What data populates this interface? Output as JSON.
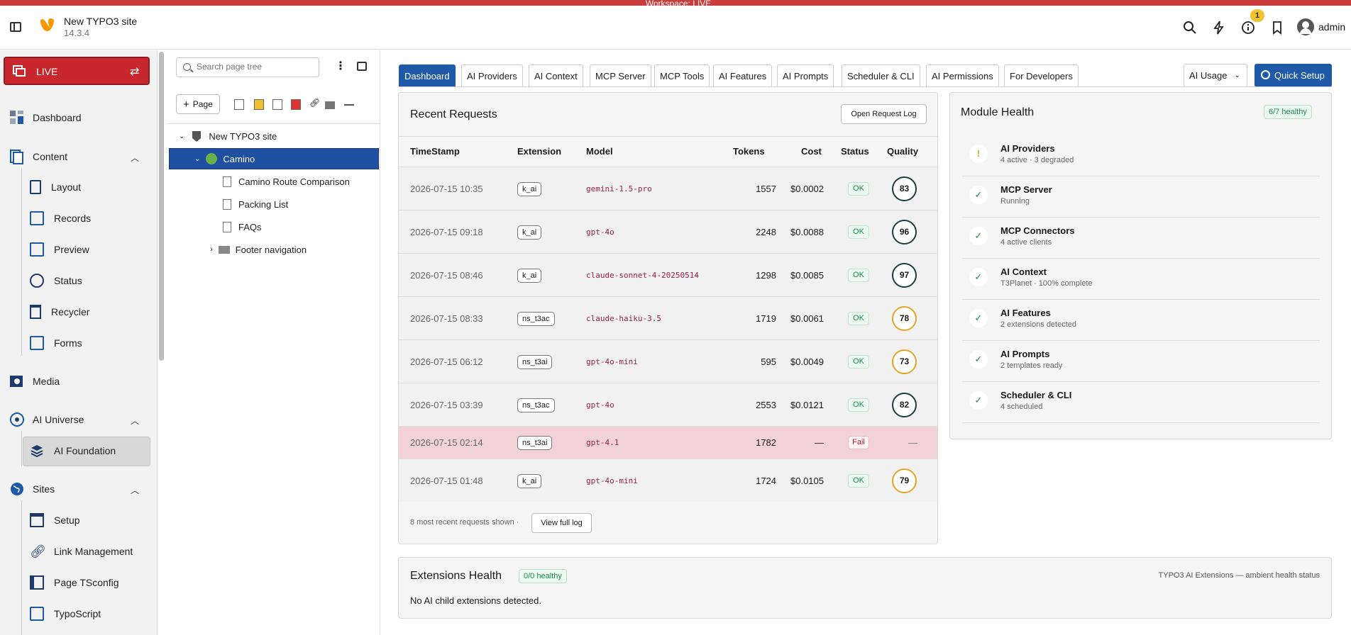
{
  "workspace_badge": "Workspace: LIVE",
  "header": {
    "site_name": "New TYPO3 site",
    "version": "14.3.4",
    "notification_count": "1",
    "username": "admin"
  },
  "sidebar": {
    "live_label": "LIVE",
    "items": {
      "dashboard": "Dashboard",
      "content": "Content",
      "layout": "Layout",
      "records": "Records",
      "preview": "Preview",
      "status": "Status",
      "recycler": "Recycler",
      "forms": "Forms",
      "media": "Media",
      "ai_universe": "AI Universe",
      "ai_foundation": "AI Foundation",
      "sites": "Sites",
      "setup": "Setup",
      "link_management": "Link Management",
      "page_tsconfig": "Page TSconfig",
      "typoscript": "TypoScript"
    }
  },
  "page_tree": {
    "search_placeholder": "Search page tree",
    "page_button": "Page",
    "root": "New TYPO3 site",
    "selected": "Camino",
    "children": [
      "Camino Route Comparison",
      "Packing List",
      "FAQs"
    ],
    "footer": "Footer navigation"
  },
  "tabs": [
    "Dashboard",
    "AI Providers",
    "AI Context",
    "MCP Server",
    "MCP Tools",
    "AI Features",
    "AI Prompts",
    "Scheduler & CLI",
    "AI Permissions",
    "For Developers"
  ],
  "ai_usage_label": "AI Usage",
  "quick_setup_label": "Quick Setup",
  "recent_requests": {
    "title": "Recent Requests",
    "open_log_button": "Open Request Log",
    "columns": [
      "TimeStamp",
      "Extension",
      "Model",
      "Tokens",
      "Cost",
      "Status",
      "Quality"
    ],
    "rows": [
      {
        "ts": "2026-07-15 10:35",
        "ext": "k_ai",
        "model": "gemini-1.5-pro",
        "tokens": "1557",
        "cost": "$0.0002",
        "status": "OK",
        "quality": "83",
        "q_level": "good"
      },
      {
        "ts": "2026-07-15 09:18",
        "ext": "k_ai",
        "model": "gpt-4o",
        "tokens": "2248",
        "cost": "$0.0088",
        "status": "OK",
        "quality": "96",
        "q_level": "good"
      },
      {
        "ts": "2026-07-15 08:46",
        "ext": "k_ai",
        "model": "claude-sonnet-4-20250514",
        "tokens": "1298",
        "cost": "$0.0085",
        "status": "OK",
        "quality": "97",
        "q_level": "good"
      },
      {
        "ts": "2026-07-15 08:33",
        "ext": "ns_t3ac",
        "model": "claude-haiku-3.5",
        "tokens": "1719",
        "cost": "$0.0061",
        "status": "OK",
        "quality": "78",
        "q_level": "warn"
      },
      {
        "ts": "2026-07-15 06:12",
        "ext": "ns_t3ai",
        "model": "gpt-4o-mini",
        "tokens": "595",
        "cost": "$0.0049",
        "status": "OK",
        "quality": "73",
        "q_level": "warn"
      },
      {
        "ts": "2026-07-15 03:39",
        "ext": "ns_t3ac",
        "model": "gpt-4o",
        "tokens": "2553",
        "cost": "$0.0121",
        "status": "OK",
        "quality": "82",
        "q_level": "good"
      },
      {
        "ts": "2026-07-15 02:14",
        "ext": "ns_t3ai",
        "model": "gpt-4.1",
        "tokens": "1782",
        "cost": "—",
        "status": "Fail",
        "quality": "—",
        "q_level": "none"
      },
      {
        "ts": "2026-07-15 01:48",
        "ext": "k_ai",
        "model": "gpt-4o-mini",
        "tokens": "1724",
        "cost": "$0.0105",
        "status": "OK",
        "quality": "79",
        "q_level": "warn"
      }
    ],
    "footer_text": "8 most recent requests shown ·",
    "view_full_log": "View full log"
  },
  "module_health": {
    "title": "Module Health",
    "badge": "6/7 healthy",
    "items": [
      {
        "name": "AI Providers",
        "desc": "4 active · 3 degraded",
        "state": "warn",
        "icon": "!"
      },
      {
        "name": "MCP Server",
        "desc": "Running",
        "state": "ok",
        "icon": "✓"
      },
      {
        "name": "MCP Connectors",
        "desc": "4 active clients",
        "state": "ok",
        "icon": "✓"
      },
      {
        "name": "AI Context",
        "desc": "T3Planet · 100% complete",
        "state": "ok",
        "icon": "✓"
      },
      {
        "name": "AI Features",
        "desc": "2 extensions detected",
        "state": "ok",
        "icon": "✓"
      },
      {
        "name": "AI Prompts",
        "desc": "2 templates ready",
        "state": "ok",
        "icon": "✓"
      },
      {
        "name": "Scheduler & CLI",
        "desc": "4 scheduled",
        "state": "ok",
        "icon": "✓"
      }
    ]
  },
  "extensions_health": {
    "title": "Extensions Health",
    "badge": "0/0 healthy",
    "right_text": "TYPO3 AI Extensions — ambient health status",
    "empty_text": "No AI child extensions detected."
  },
  "colors": {
    "accent": "#1e5aa8",
    "live": "#c8282d",
    "ok": "#198e4a",
    "warn": "#e5a325",
    "fail_row": "#f2d2d6"
  }
}
